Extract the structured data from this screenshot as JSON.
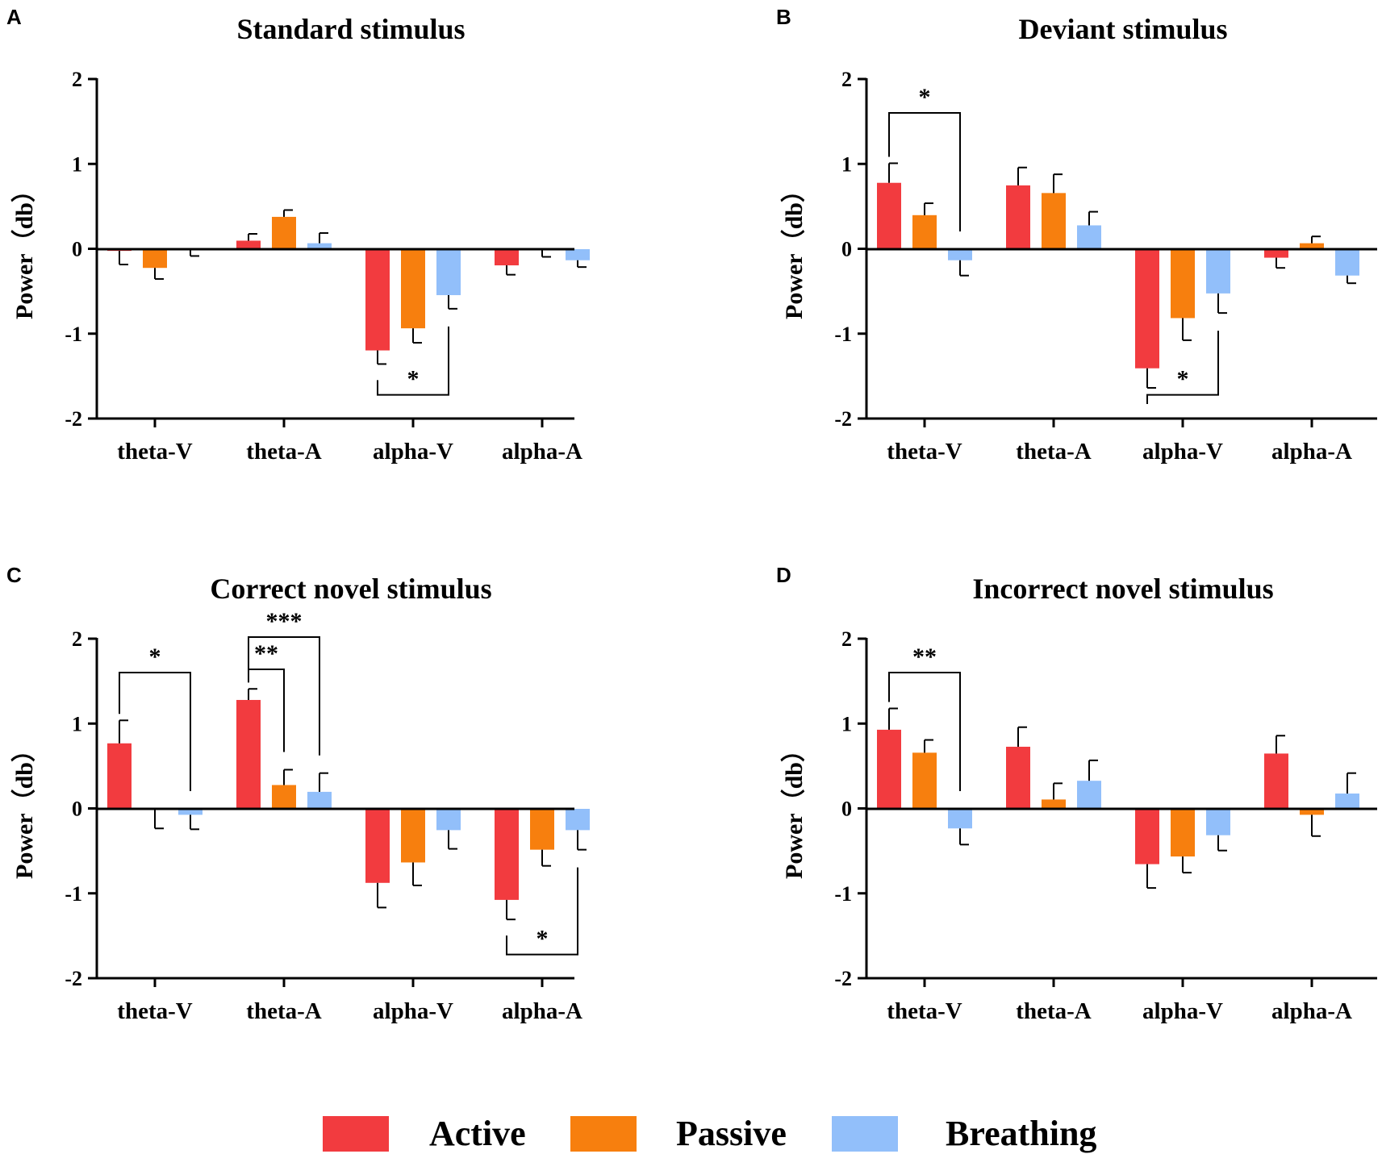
{
  "legend": [
    {
      "name": "Active",
      "color": "#f23b3f"
    },
    {
      "name": "Passive",
      "color": "#f77f0e"
    },
    {
      "name": "Breathing",
      "color": "#92bffa"
    }
  ],
  "chart_data": [
    {
      "panel": "A",
      "type": "bar",
      "title": "Standard stimulus",
      "ylabel": "Power（db）",
      "ylim": [
        -2,
        2
      ],
      "yticks": [
        "2",
        "1",
        "0",
        "-1",
        "-2"
      ],
      "categories": [
        "theta-V",
        "theta-A",
        "alpha-V",
        "alpha-A"
      ],
      "series": [
        {
          "name": "Active",
          "values": [
            -0.02,
            0.1,
            -1.19,
            -0.19
          ],
          "errors": [
            0.16,
            0.08,
            0.16,
            0.11
          ]
        },
        {
          "name": "Passive",
          "values": [
            -0.22,
            0.38,
            -0.93,
            -0.01
          ],
          "errors": [
            0.13,
            0.08,
            0.17,
            0.08
          ]
        },
        {
          "name": "Breathing",
          "values": [
            -0.01,
            0.07,
            -0.54,
            -0.13
          ],
          "errors": [
            0.07,
            0.12,
            0.16,
            0.08
          ]
        }
      ],
      "significance": [
        {
          "category": 2,
          "from": 0,
          "to": 2,
          "label": "*",
          "direction": "below"
        }
      ]
    },
    {
      "panel": "B",
      "type": "bar",
      "title": "Deviant stimulus",
      "ylabel": "Power（db）",
      "ylim": [
        -2,
        2
      ],
      "yticks": [
        "2",
        "1",
        "0",
        "-1",
        "-2"
      ],
      "categories": [
        "theta-V",
        "theta-A",
        "alpha-V",
        "alpha-A"
      ],
      "series": [
        {
          "name": "Active",
          "values": [
            0.78,
            0.75,
            -1.4,
            -0.1
          ],
          "errors": [
            0.23,
            0.21,
            0.23,
            0.12
          ]
        },
        {
          "name": "Passive",
          "values": [
            0.4,
            0.66,
            -0.81,
            0.07
          ],
          "errors": [
            0.14,
            0.22,
            0.26,
            0.08
          ]
        },
        {
          "name": "Breathing",
          "values": [
            -0.13,
            0.28,
            -0.52,
            -0.31
          ],
          "errors": [
            0.18,
            0.16,
            0.23,
            0.09
          ]
        }
      ],
      "significance": [
        {
          "category": 0,
          "from": 0,
          "to": 2,
          "label": "*",
          "direction": "above"
        },
        {
          "category": 2,
          "from": 0,
          "to": 2,
          "label": "*",
          "direction": "below"
        }
      ]
    },
    {
      "panel": "C",
      "type": "bar",
      "title": "Correct novel stimulus",
      "ylabel": "Power（db）",
      "ylim": [
        -2,
        2
      ],
      "yticks": [
        "2",
        "1",
        "0",
        "-1",
        "-2"
      ],
      "categories": [
        "theta-V",
        "theta-A",
        "alpha-V",
        "alpha-A"
      ],
      "series": [
        {
          "name": "Active",
          "values": [
            0.77,
            1.28,
            -0.87,
            -1.07
          ],
          "errors": [
            0.27,
            0.13,
            0.29,
            0.23
          ]
        },
        {
          "name": "Passive",
          "values": [
            -0.01,
            0.28,
            -0.63,
            -0.48
          ],
          "errors": [
            0.22,
            0.18,
            0.27,
            0.19
          ]
        },
        {
          "name": "Breathing",
          "values": [
            -0.07,
            0.2,
            -0.25,
            -0.25
          ],
          "errors": [
            0.17,
            0.22,
            0.22,
            0.23
          ]
        }
      ],
      "significance": [
        {
          "category": 0,
          "from": 0,
          "to": 2,
          "label": "*",
          "direction": "above"
        },
        {
          "category": 1,
          "from": 0,
          "to": 1,
          "label": "**",
          "direction": "above"
        },
        {
          "category": 1,
          "from": 0,
          "to": 2,
          "label": "***",
          "direction": "above"
        },
        {
          "category": 3,
          "from": 0,
          "to": 2,
          "label": "*",
          "direction": "below"
        }
      ]
    },
    {
      "panel": "D",
      "type": "bar",
      "title": "Incorrect novel stimulus",
      "ylabel": "Power（db）",
      "ylim": [
        -2,
        2
      ],
      "yticks": [
        "2",
        "1",
        "0",
        "-1",
        "-2"
      ],
      "categories": [
        "theta-V",
        "theta-A",
        "alpha-V",
        "alpha-A"
      ],
      "series": [
        {
          "name": "Active",
          "values": [
            0.93,
            0.73,
            -0.65,
            0.65
          ],
          "errors": [
            0.25,
            0.23,
            0.28,
            0.21
          ]
        },
        {
          "name": "Passive",
          "values": [
            0.66,
            0.11,
            -0.56,
            -0.07
          ],
          "errors": [
            0.15,
            0.19,
            0.19,
            0.25
          ]
        },
        {
          "name": "Breathing",
          "values": [
            -0.23,
            0.33,
            -0.31,
            0.18
          ],
          "errors": [
            0.19,
            0.24,
            0.18,
            0.24
          ]
        }
      ],
      "significance": [
        {
          "category": 0,
          "from": 0,
          "to": 2,
          "label": "**",
          "direction": "above"
        }
      ]
    }
  ]
}
